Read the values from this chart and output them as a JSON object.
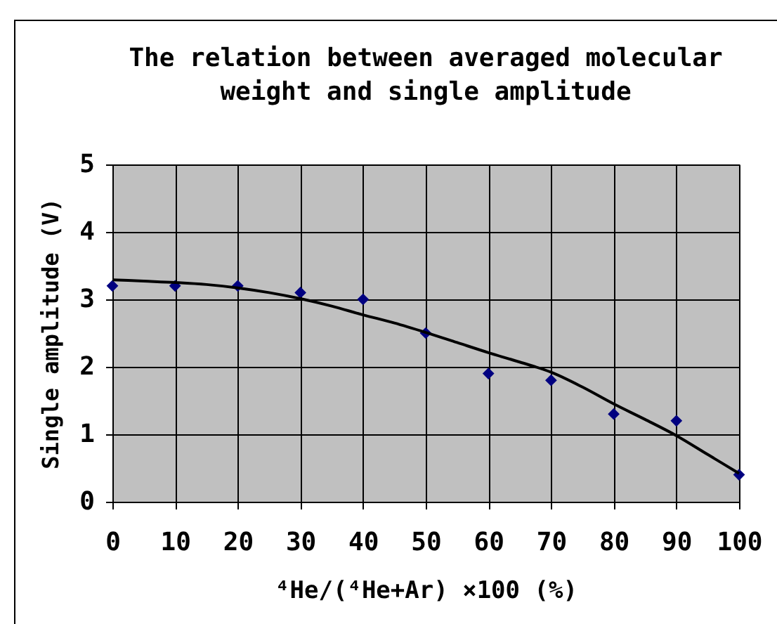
{
  "chart_data": {
    "type": "scatter",
    "title": "The relation between averaged molecular\nweight and single amplitude",
    "xlabel": "⁴He/(⁴He+Ar) ×100 (%)",
    "ylabel": "Single amplitude (V)",
    "x": [
      0,
      10,
      20,
      30,
      40,
      50,
      60,
      70,
      80,
      90,
      100
    ],
    "series": [
      {
        "color": "#000080",
        "marker": "diamond",
        "values": [
          3.2,
          3.2,
          3.2,
          3.1,
          3.0,
          2.5,
          1.9,
          1.8,
          1.3,
          1.2,
          0.4
        ]
      },
      {
        "type": "line",
        "color": "#000000",
        "x": [
          0,
          5,
          10,
          15,
          20,
          25,
          30,
          35,
          40,
          45,
          50,
          55,
          60,
          65,
          70,
          75,
          80,
          85,
          90,
          95,
          100
        ],
        "values": [
          3.29,
          3.27,
          3.25,
          3.22,
          3.17,
          3.1,
          3.01,
          2.9,
          2.77,
          2.65,
          2.51,
          2.36,
          2.21,
          2.07,
          1.92,
          1.7,
          1.45,
          1.22,
          0.98,
          0.7,
          0.42
        ]
      }
    ],
    "xlim": [
      0,
      100
    ],
    "xticks": [
      0,
      10,
      20,
      30,
      40,
      50,
      60,
      70,
      80,
      90,
      100
    ],
    "ylim": [
      0,
      5
    ],
    "yticks": [
      0,
      1,
      2,
      3,
      4,
      5
    ],
    "grid": true
  }
}
